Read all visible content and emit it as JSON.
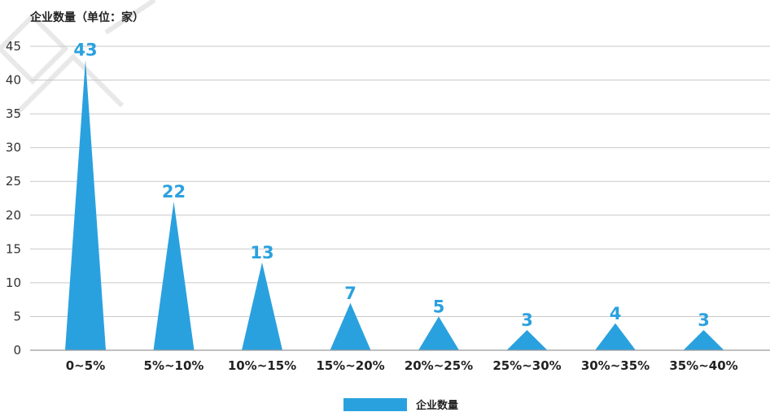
{
  "chart_data": {
    "type": "area",
    "ylabel": "企业数量（单位：家）",
    "categories": [
      "0~5%",
      "5%~10%",
      "10%~15%",
      "15%~20%",
      "20%~25%",
      "25%~30%",
      "30%~35%",
      "35%~40%"
    ],
    "series": [
      {
        "name": "企业数量",
        "values": [
          43,
          22,
          13,
          7,
          5,
          3,
          4,
          3
        ]
      }
    ],
    "ylim": [
      0,
      45
    ],
    "yticks": [
      0,
      5,
      10,
      15,
      20,
      25,
      30,
      35,
      40,
      45
    ],
    "grid": true,
    "legend_position": "bottom-center",
    "color": "#2aa1df"
  }
}
